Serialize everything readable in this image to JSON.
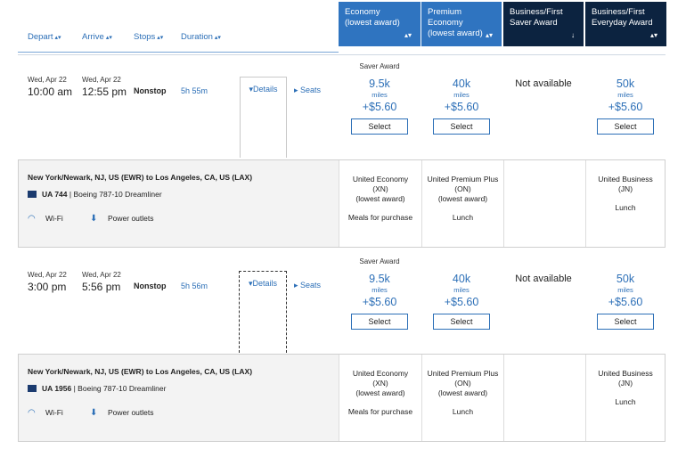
{
  "header": {
    "sort": [
      {
        "label": "Depart"
      },
      {
        "label": "Arrive"
      },
      {
        "label": "Stops"
      },
      {
        "label": "Duration"
      }
    ],
    "cabins": [
      {
        "label1": "Economy",
        "label2": "(lowest award)",
        "label3": ""
      },
      {
        "label1": "Premium",
        "label2": "Economy",
        "label3": "(lowest award)"
      },
      {
        "label1": "Business/First",
        "label2": "Saver Award",
        "label3": ""
      },
      {
        "label1": "Business/First",
        "label2": "Everyday Award",
        "label3": ""
      }
    ]
  },
  "flights": [
    {
      "depart_date": "Wed, Apr 22",
      "depart_time": "10:00 am",
      "arrive_date": "Wed, Apr 22",
      "arrive_time": "12:55 pm",
      "stops": "Nonstop",
      "duration": "5h 55m",
      "details_label": "Details",
      "seats_label": "Seats",
      "saver_label": "Saver Award",
      "economy": {
        "miles": "9.5k",
        "unit": "miles",
        "tax": "+$5.60",
        "select": "Select"
      },
      "premium": {
        "miles": "40k",
        "unit": "miles",
        "tax": "+$5.60",
        "select": "Select"
      },
      "business_saver": {
        "status": "Not available"
      },
      "business_everyday": {
        "miles": "50k",
        "unit": "miles",
        "tax": "+$5.60",
        "select": "Select"
      },
      "details": {
        "route": "New York/Newark, NJ, US (EWR) to Los Angeles, CA, US (LAX)",
        "flight_number": "UA 744",
        "aircraft": "| Boeing 787-10 Dreamliner",
        "wifi": "Wi-Fi",
        "power": "Power outlets",
        "economy": {
          "l1": "United Economy",
          "l2": "(XN)",
          "l3": "(lowest award)",
          "meal": "Meals for purchase"
        },
        "premium": {
          "l1": "United Premium Plus",
          "l2": "(ON)",
          "l3": "(lowest award)",
          "meal": "Lunch"
        },
        "business": {
          "l1": "United Business",
          "l2": "(JN)",
          "meal": "Lunch"
        }
      }
    },
    {
      "depart_date": "Wed, Apr 22",
      "depart_time": "3:00 pm",
      "arrive_date": "Wed, Apr 22",
      "arrive_time": "5:56 pm",
      "stops": "Nonstop",
      "duration": "5h 56m",
      "details_label": "Details",
      "seats_label": "Seats",
      "saver_label": "Saver Award",
      "economy": {
        "miles": "9.5k",
        "unit": "miles",
        "tax": "+$5.60",
        "select": "Select"
      },
      "premium": {
        "miles": "40k",
        "unit": "miles",
        "tax": "+$5.60",
        "select": "Select"
      },
      "business_saver": {
        "status": "Not available"
      },
      "business_everyday": {
        "miles": "50k",
        "unit": "miles",
        "tax": "+$5.60",
        "select": "Select"
      },
      "details": {
        "route": "New York/Newark, NJ, US (EWR) to Los Angeles, CA, US (LAX)",
        "flight_number": "UA 1956",
        "aircraft": "| Boeing 787-10 Dreamliner",
        "wifi": "Wi-Fi",
        "power": "Power outlets",
        "economy": {
          "l1": "United Economy",
          "l2": "(XN)",
          "l3": "(lowest award)",
          "meal": "Meals for purchase"
        },
        "premium": {
          "l1": "United Premium Plus",
          "l2": "(ON)",
          "l3": "(lowest award)",
          "meal": "Lunch"
        },
        "business": {
          "l1": "United Business",
          "l2": "(JN)",
          "meal": "Lunch"
        }
      }
    }
  ],
  "colors": {
    "accent": "#2f74c0",
    "navy": "#0c2340",
    "link": "#2c6fb7"
  },
  "icons": [
    "sort-arrows-icon",
    "sort-down-icon",
    "chevron-down-icon",
    "chevron-right-icon",
    "airline-flag-icon",
    "wifi-icon",
    "power-plug-icon"
  ]
}
